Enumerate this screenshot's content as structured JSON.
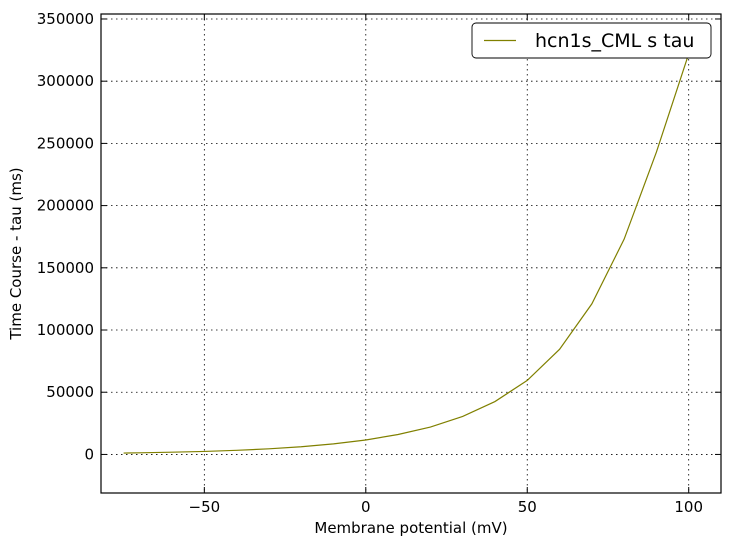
{
  "chart_data": {
    "type": "line",
    "title": "",
    "xlabel": "Membrane potential (mV)",
    "ylabel": "Time Course - tau (ms)",
    "xlim": [
      -82,
      110
    ],
    "ylim": [
      -31000,
      354000
    ],
    "xticks": [
      -50,
      0,
      50,
      100
    ],
    "xtick_labels": [
      "−50",
      "0",
      "50",
      "100"
    ],
    "yticks": [
      0,
      50000,
      100000,
      150000,
      200000,
      250000,
      300000,
      350000
    ],
    "ytick_labels": [
      "0",
      "50000",
      "100000",
      "150000",
      "200000",
      "250000",
      "300000",
      "350000"
    ],
    "grid": true,
    "legend_position": "top-right",
    "series": [
      {
        "name": "hcn1s_CML s tau",
        "color": "#808000",
        "x": [
          -75,
          -70,
          -60,
          -50,
          -40,
          -30,
          -20,
          -10,
          0,
          10,
          20,
          30,
          40,
          50,
          60,
          70,
          80,
          90,
          100
        ],
        "y": [
          1100,
          1300,
          1800,
          2400,
          3300,
          4500,
          6200,
          8500,
          11600,
          16000,
          22000,
          30500,
          42500,
          59500,
          84500,
          121000,
          173000,
          243000,
          322000
        ]
      }
    ]
  }
}
